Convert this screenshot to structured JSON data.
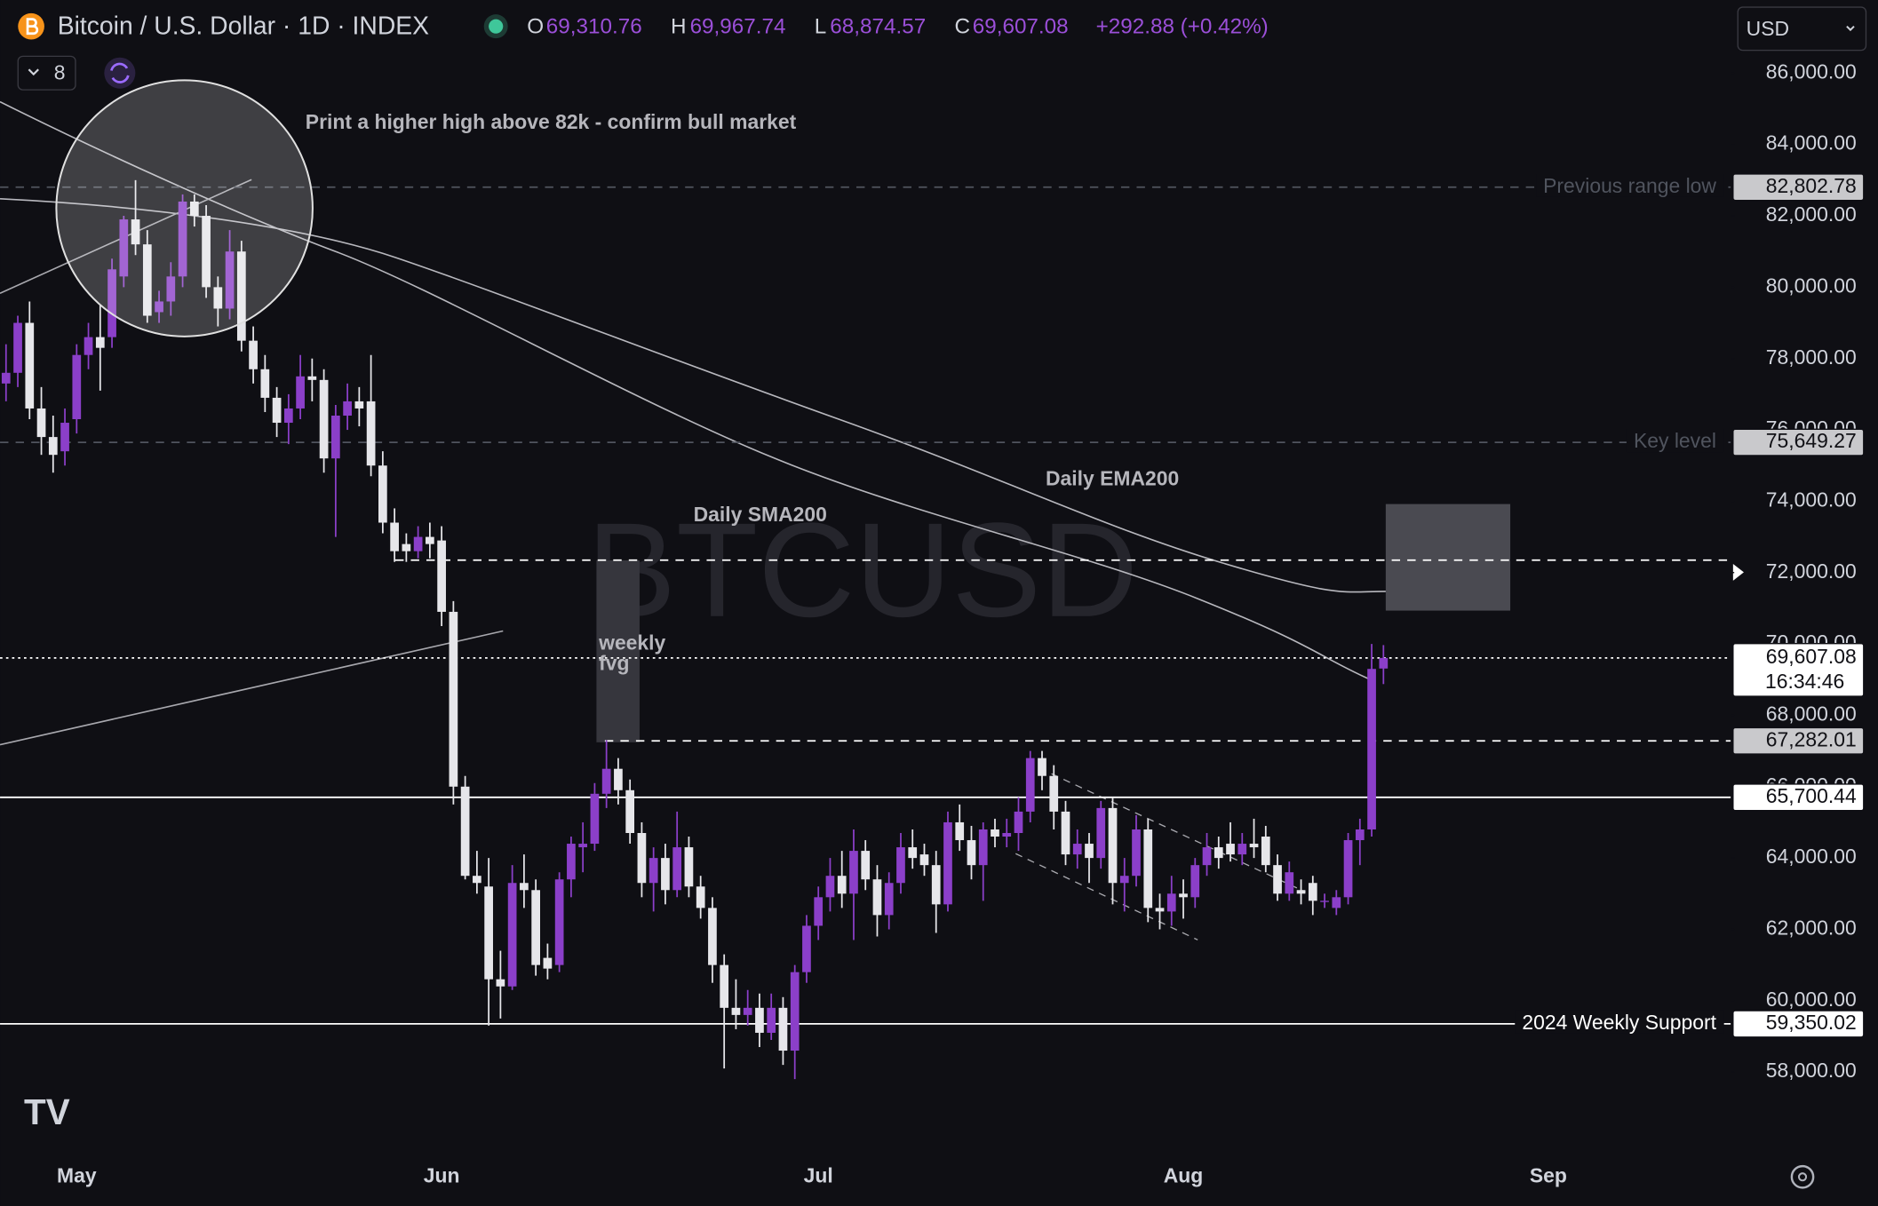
{
  "header": {
    "title": "Bitcoin / U.S. Dollar · 1D · INDEX",
    "ohlc": [
      {
        "key": "O",
        "value": "69,310.76"
      },
      {
        "key": "H",
        "value": "69,967.74"
      },
      {
        "key": "L",
        "value": "68,874.57"
      },
      {
        "key": "C",
        "value": "69,607.08"
      }
    ],
    "change": "+292.88 (+0.42%)",
    "currency": "USD",
    "indicators": "8"
  },
  "annotations": {
    "higher_high": "Print a higher high above 82k - confirm bull market",
    "sma": "Daily SMA200",
    "ema": "Daily EMA200",
    "fvg": [
      "weekly",
      "fvg"
    ],
    "watermark": "BTCUSD"
  },
  "chart_data": {
    "type": "candlestick",
    "up_color": "#8b3fc9",
    "down_color": "#e6e6ea",
    "categories": [
      null,
      null,
      null,
      null,
      null,
      null,
      "May",
      null,
      null,
      null,
      null,
      null,
      null,
      null,
      null,
      null,
      null,
      null,
      null,
      null,
      null,
      null,
      null,
      null,
      null,
      null,
      null,
      null,
      null,
      null,
      null,
      null,
      null,
      null,
      null,
      null,
      null,
      "Jun",
      null,
      null,
      null,
      null,
      null,
      null,
      null,
      null,
      null,
      null,
      null,
      null,
      null,
      null,
      null,
      null,
      null,
      null,
      null,
      null,
      null,
      null,
      null,
      null,
      null,
      null,
      null,
      null,
      null,
      null,
      null,
      "Jul",
      null,
      null,
      null,
      null,
      null,
      null,
      null,
      null,
      null,
      null,
      null,
      null,
      null,
      null,
      null,
      null,
      null,
      null,
      null,
      null,
      null,
      null,
      null,
      null,
      null,
      null,
      null,
      null,
      null,
      null,
      "Aug",
      null,
      null,
      null,
      null,
      null,
      null,
      null,
      null,
      null,
      null,
      null,
      null,
      null,
      null,
      null,
      null,
      null,
      null,
      null,
      null,
      null,
      null,
      null,
      null,
      null,
      null,
      null,
      null,
      null,
      null,
      "Sep"
    ],
    "series": [
      {
        "name": "BTCUSD",
        "values": [
          [
            77300,
            78400,
            76800,
            77600
          ],
          [
            77600,
            79200,
            77200,
            79000
          ],
          [
            79000,
            79600,
            76300,
            76600
          ],
          [
            76600,
            77200,
            75300,
            75800
          ],
          [
            75800,
            76400,
            74800,
            75300
          ],
          [
            75400,
            76600,
            75000,
            76200
          ],
          [
            76300,
            78400,
            75900,
            78100
          ],
          [
            78100,
            79000,
            77700,
            78600
          ],
          [
            78600,
            79500,
            77100,
            78300
          ],
          [
            78600,
            80800,
            78300,
            80500
          ],
          [
            80300,
            82000,
            80000,
            81900
          ],
          [
            81900,
            83000,
            80900,
            81200
          ],
          [
            81200,
            81600,
            79000,
            79200
          ],
          [
            79300,
            79900,
            79000,
            79600
          ],
          [
            79600,
            80700,
            79200,
            80300
          ],
          [
            80300,
            82600,
            80000,
            82400
          ],
          [
            82400,
            82600,
            81700,
            82000
          ],
          [
            82000,
            82300,
            79700,
            80000
          ],
          [
            80000,
            80300,
            78900,
            79400
          ],
          [
            79400,
            81600,
            79100,
            81000
          ],
          [
            81000,
            81300,
            78200,
            78500
          ],
          [
            78500,
            78900,
            77300,
            77700
          ],
          [
            77700,
            78100,
            76500,
            76900
          ],
          [
            76900,
            77200,
            75800,
            76200
          ],
          [
            76200,
            77000,
            75600,
            76600
          ],
          [
            76600,
            78100,
            76300,
            77500
          ],
          [
            77500,
            78000,
            76800,
            77400
          ],
          [
            77400,
            77700,
            74800,
            75200
          ],
          [
            75200,
            76700,
            73000,
            76400
          ],
          [
            76400,
            77300,
            76000,
            76800
          ],
          [
            76800,
            77200,
            76100,
            76600
          ],
          [
            76800,
            78100,
            74700,
            75000
          ],
          [
            75000,
            75400,
            73100,
            73400
          ],
          [
            73400,
            73800,
            72300,
            72600
          ],
          [
            72800,
            73100,
            72300,
            72600
          ],
          [
            72600,
            73300,
            72400,
            73000
          ],
          [
            73000,
            73400,
            72400,
            72800
          ],
          [
            72900,
            73300,
            70500,
            70900
          ],
          [
            70900,
            71200,
            65500,
            66000
          ],
          [
            66000,
            66300,
            63400,
            63500
          ],
          [
            63500,
            64200,
            63000,
            63300
          ],
          [
            63200,
            64000,
            59300,
            60600
          ],
          [
            60600,
            61400,
            59500,
            60400
          ],
          [
            60400,
            63800,
            60300,
            63300
          ],
          [
            63300,
            64100,
            62600,
            63100
          ],
          [
            63100,
            63400,
            60700,
            61000
          ],
          [
            61200,
            61600,
            60600,
            60900
          ],
          [
            61000,
            63600,
            60800,
            63400
          ],
          [
            63400,
            64600,
            62900,
            64400
          ],
          [
            64300,
            65000,
            63600,
            64400
          ],
          [
            64400,
            66100,
            64200,
            65800
          ],
          [
            65800,
            67300,
            65400,
            66500
          ],
          [
            66500,
            66800,
            65500,
            65900
          ],
          [
            65900,
            66200,
            64400,
            64700
          ],
          [
            64700,
            65000,
            62900,
            63300
          ],
          [
            63300,
            64300,
            62500,
            64000
          ],
          [
            64000,
            64400,
            62700,
            63100
          ],
          [
            63100,
            65300,
            62900,
            64300
          ],
          [
            64300,
            64600,
            62900,
            63200
          ],
          [
            63200,
            63500,
            62300,
            62600
          ],
          [
            62600,
            62900,
            60500,
            61000
          ],
          [
            61000,
            61300,
            58100,
            59800
          ],
          [
            59800,
            60600,
            59200,
            59600
          ],
          [
            59600,
            60300,
            59300,
            59800
          ],
          [
            59800,
            60200,
            58700,
            59100
          ],
          [
            59100,
            60200,
            58900,
            59800
          ],
          [
            59800,
            60100,
            58200,
            58600
          ],
          [
            58600,
            61000,
            57800,
            60800
          ],
          [
            60800,
            62400,
            60500,
            62100
          ],
          [
            62100,
            63200,
            61700,
            62900
          ],
          [
            62900,
            64000,
            62500,
            63500
          ],
          [
            63500,
            64200,
            62600,
            63000
          ],
          [
            63000,
            64800,
            61700,
            64200
          ],
          [
            64200,
            64500,
            63100,
            63400
          ],
          [
            63400,
            63800,
            61800,
            62400
          ],
          [
            62400,
            63600,
            62000,
            63300
          ],
          [
            63300,
            64700,
            63000,
            64300
          ],
          [
            64300,
            64800,
            63700,
            64000
          ],
          [
            64100,
            64400,
            63500,
            63800
          ],
          [
            63800,
            64200,
            61900,
            62700
          ],
          [
            62700,
            65300,
            62500,
            65000
          ],
          [
            65000,
            65500,
            64200,
            64500
          ],
          [
            64500,
            64900,
            63400,
            63800
          ],
          [
            63800,
            65000,
            62800,
            64800
          ],
          [
            64800,
            65100,
            64300,
            64600
          ],
          [
            64600,
            65100,
            64300,
            64700
          ],
          [
            64700,
            65700,
            64200,
            65300
          ],
          [
            65300,
            67000,
            65000,
            66800
          ],
          [
            66800,
            67000,
            65900,
            66300
          ],
          [
            66300,
            66600,
            64800,
            65300
          ],
          [
            65300,
            65600,
            63800,
            64100
          ],
          [
            64100,
            64800,
            63700,
            64400
          ],
          [
            64400,
            64700,
            63300,
            64000
          ],
          [
            64000,
            65600,
            63700,
            65400
          ],
          [
            65400,
            65700,
            62700,
            63300
          ],
          [
            63300,
            64000,
            62500,
            63500
          ],
          [
            63500,
            65200,
            63200,
            64800
          ],
          [
            64800,
            65100,
            62200,
            62600
          ],
          [
            62600,
            63000,
            62000,
            62500
          ],
          [
            62500,
            63500,
            62100,
            63000
          ],
          [
            63000,
            63400,
            62300,
            62900
          ],
          [
            62900,
            64000,
            62600,
            63800
          ],
          [
            63800,
            64700,
            63500,
            64300
          ],
          [
            64300,
            64600,
            63700,
            64000
          ],
          [
            64400,
            65000,
            63900,
            64100
          ],
          [
            64100,
            64700,
            63800,
            64400
          ],
          [
            64400,
            65100,
            64000,
            64300
          ],
          [
            64600,
            64900,
            63600,
            63800
          ],
          [
            63800,
            64100,
            62800,
            63000
          ],
          [
            63000,
            63900,
            62800,
            63600
          ],
          [
            63100,
            63400,
            62700,
            63000
          ],
          [
            63300,
            63500,
            62400,
            62800
          ],
          [
            62800,
            63000,
            62600,
            62800
          ],
          [
            62600,
            63100,
            62400,
            62900
          ],
          [
            62900,
            64700,
            62700,
            64500
          ],
          [
            64500,
            65100,
            63800,
            64800
          ],
          [
            64800,
            70000,
            64600,
            69300
          ],
          [
            69310.76,
            69967.74,
            68874.57,
            69607.08
          ],
          null,
          null,
          null,
          null,
          null,
          null,
          null,
          null,
          null,
          null,
          null,
          null
        ]
      }
    ],
    "ylim": [
      56000,
      88050
    ],
    "yticks": [
      {
        "value": 58000,
        "label": "58,000.00"
      },
      {
        "value": 60000,
        "label": "60,000.00"
      },
      {
        "value": 62000,
        "label": "62,000.00"
      },
      {
        "value": 64000,
        "label": "64,000.00"
      },
      {
        "value": 66000,
        "label": "66,000.00"
      },
      {
        "value": 68000,
        "label": "68,000.00"
      },
      {
        "value": 70000,
        "label": "70,000.00"
      },
      {
        "value": 72000,
        "label": "72,000.00"
      },
      {
        "value": 74000,
        "label": "74,000.00"
      },
      {
        "value": 76000,
        "label": "76,000.00"
      },
      {
        "value": 78000,
        "label": "78,000.00"
      },
      {
        "value": 80000,
        "label": "80,000.00"
      },
      {
        "value": 82000,
        "label": "82,000.00"
      },
      {
        "value": 84000,
        "label": "84,000.00"
      },
      {
        "value": 86000,
        "label": "86,000.00"
      }
    ],
    "grid": false,
    "levels": [
      {
        "price": {
          "value": 82802.78,
          "label": "82,802.78"
        },
        "name": "Previous range low",
        "style": "dashed",
        "color": "#50545e",
        "box": "#c9c9cc"
      },
      {
        "price": {
          "value": 75649.27,
          "label": "75,649.27"
        },
        "name": "Key level",
        "style": "dashed",
        "color": "#50545e",
        "box": "#c9c9cc"
      },
      {
        "price": 72350,
        "style": "dashed",
        "color": "#ffffff"
      },
      {
        "price": {
          "value": 69607.08,
          "label": "69,607.08"
        },
        "countdown": "16:34:46",
        "style": "dotted",
        "color": "#ffffff",
        "box": "#ffffff"
      },
      {
        "price": {
          "value": 67282.01,
          "label": "67,282.01"
        },
        "style": "dashed",
        "color": "#ffffff",
        "box": "#c9c9cc"
      },
      {
        "price": {
          "value": 65700.44,
          "label": "65,700.44"
        },
        "style": "solid",
        "color": "#ffffff",
        "box": "#ffffff"
      },
      {
        "price": {
          "value": 59350.02,
          "label": "59,350.02"
        },
        "name": "2024 Weekly Support",
        "style": "solid",
        "color": "#ffffff",
        "box": "#ffffff"
      }
    ]
  }
}
